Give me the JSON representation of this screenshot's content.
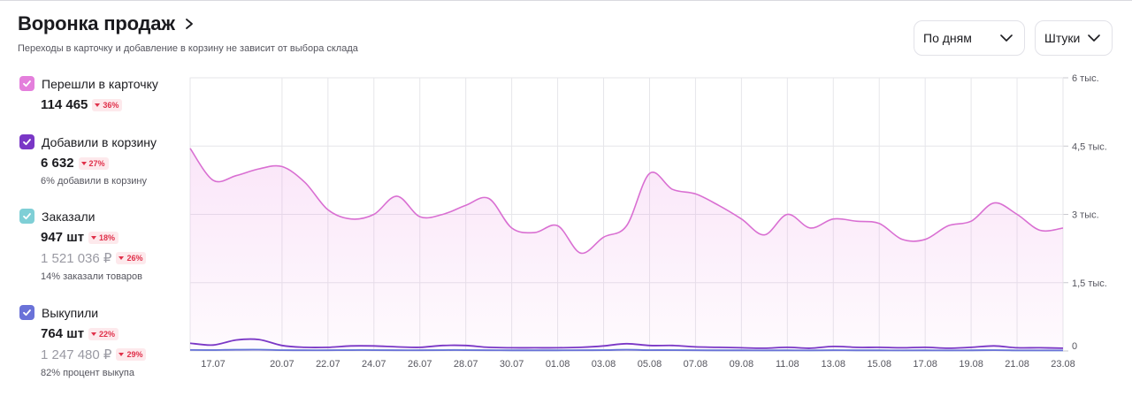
{
  "header": {
    "title": "Воронка продаж",
    "subtitle": "Переходы в карточку и добавление в корзину не зависит от выбора склада"
  },
  "controls": {
    "period": "По дням",
    "units": "Штуки"
  },
  "metrics": [
    {
      "label": "Перешли в карточку",
      "value": "114 465",
      "change": "36%",
      "note": "",
      "value2": "",
      "change2": "",
      "color": "#e47fdc"
    },
    {
      "label": "Добавили в корзину",
      "value": "6 632",
      "change": "27%",
      "note": "6% добавили в корзину",
      "value2": "",
      "change2": "",
      "color": "#7a37c6"
    },
    {
      "label": "Заказали",
      "value": "947 шт",
      "change": "18%",
      "value2": "1 521 036 ₽",
      "change2": "26%",
      "note": "14% заказали товаров",
      "color": "#7fcfd6"
    },
    {
      "label": "Выкупили",
      "value": "764 шт",
      "change": "22%",
      "value2": "1 247 480 ₽",
      "change2": "29%",
      "note": "82% процент выкупа",
      "color": "#6a72d8"
    }
  ],
  "chart_data": {
    "type": "area",
    "x_tick_labels": [
      "17.07",
      "20.07",
      "22.07",
      "24.07",
      "26.07",
      "28.07",
      "30.07",
      "01.08",
      "03.08",
      "05.08",
      "07.08",
      "09.08",
      "11.08",
      "13.08",
      "15.08",
      "17.08",
      "19.08",
      "21.08",
      "23.08"
    ],
    "y_tick_labels": [
      "0",
      "1,5 тыс.",
      "3 тыс.",
      "4,5 тыс.",
      "6 тыс."
    ],
    "ylim": [
      0,
      6000
    ],
    "x": [
      "16.07",
      "17.07",
      "18.07",
      "19.07",
      "20.07",
      "21.07",
      "22.07",
      "23.07",
      "24.07",
      "25.07",
      "26.07",
      "27.07",
      "28.07",
      "29.07",
      "30.07",
      "31.07",
      "01.08",
      "02.08",
      "03.08",
      "04.08",
      "05.08",
      "06.08",
      "07.08",
      "08.08",
      "09.08",
      "10.08",
      "11.08",
      "12.08",
      "13.08",
      "14.08",
      "15.08",
      "16.08",
      "17.08",
      "18.08",
      "19.08",
      "20.08",
      "21.08",
      "22.08",
      "23.08"
    ],
    "series": [
      {
        "name": "Перешли в карточку",
        "color": "#d96fd2",
        "values": [
          4450,
          3750,
          3850,
          4000,
          4050,
          3700,
          3100,
          2900,
          3000,
          3400,
          2950,
          3000,
          3200,
          3350,
          2700,
          2600,
          2750,
          2150,
          2500,
          2750,
          3900,
          3550,
          3450,
          3200,
          2900,
          2550,
          3000,
          2700,
          2900,
          2850,
          2800,
          2450,
          2450,
          2750,
          2850,
          3250,
          3000,
          2650,
          2700
        ]
      },
      {
        "name": "Добавили в корзину",
        "color": "#7a37c6",
        "values": [
          170,
          130,
          240,
          250,
          120,
          80,
          80,
          110,
          110,
          90,
          80,
          120,
          120,
          80,
          70,
          70,
          70,
          80,
          110,
          160,
          120,
          120,
          90,
          80,
          70,
          60,
          80,
          60,
          100,
          80,
          80,
          70,
          80,
          60,
          80,
          110,
          70,
          70,
          60
        ]
      },
      {
        "name": "Заказали",
        "color": "#7fcfd6",
        "values": [
          25,
          22,
          30,
          32,
          20,
          18,
          18,
          22,
          22,
          18,
          18,
          22,
          22,
          18,
          16,
          16,
          16,
          18,
          22,
          30,
          22,
          22,
          18,
          16,
          16,
          14,
          16,
          14,
          18,
          16,
          16,
          14,
          16,
          14,
          16,
          20,
          14,
          14,
          14
        ]
      },
      {
        "name": "Выкупили",
        "color": "#6a72d8",
        "values": [
          22,
          20,
          26,
          28,
          18,
          15,
          15,
          18,
          18,
          15,
          15,
          18,
          18,
          15,
          13,
          13,
          13,
          15,
          18,
          25,
          18,
          18,
          15,
          13,
          13,
          12,
          13,
          12,
          15,
          13,
          13,
          12,
          13,
          12,
          13,
          17,
          12,
          12,
          12
        ]
      }
    ],
    "grid": true,
    "y_axis_position": "right"
  }
}
